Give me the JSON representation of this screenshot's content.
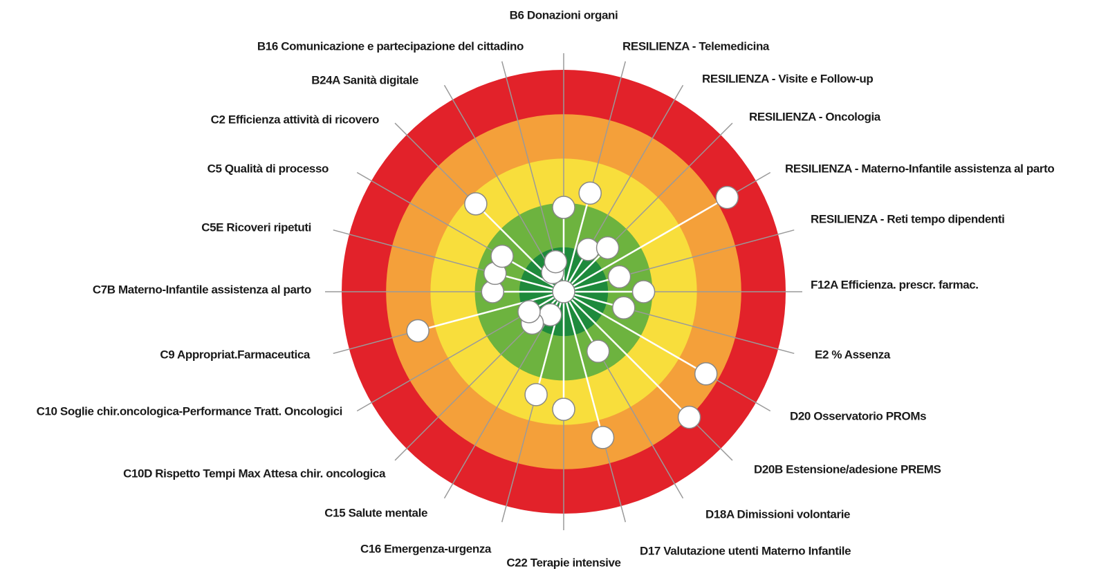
{
  "chart_data": {
    "type": "target",
    "categories": [
      "B6 Donazioni organi",
      "RESILIENZA - Telemedicina",
      "RESILIENZA - Visite e Follow-up",
      "RESILIENZA - Oncologia",
      "RESILIENZA - Materno-Infantile assistenza al parto",
      "RESILIENZA - Reti tempo dipendenti",
      "F12A Efficienza. prescr. farmac.",
      "E2 % Assenza",
      "D20 Osservatorio PROMs",
      "D20B Estensione/adesione PREMS",
      "D18A Dimissioni volontarie",
      "D17 Valutazione utenti Materno Infantile",
      "C22 Terapie intensive",
      "C16 Emergenza-urgenza",
      "C15 Salute mentale",
      "C10D Rispetto Tempi Max Attesa chir. oncologica",
      "C10 Soglie chir.oncologica-Performance Tratt. Oncologici",
      "C9 Appropriat.Farmaceutica",
      "C7B Materno-Infantile assistenza al parto",
      "C5E Ricoveri ripetuti",
      "C5 Qualità  di processo",
      "C2 Efficienza attività di ricovero",
      "B24A Sanità digitale",
      "B16 Comunicazione e partecipazione del cittadino"
    ],
    "values": [
      3.1,
      2.7,
      3.9,
      3.6,
      0.75,
      3.7,
      3.2,
      3.6,
      1.3,
      1.0,
      3.45,
      1.6,
      2.35,
      2.6,
      4.4,
      4.0,
      4.1,
      1.6,
      3.4,
      3.4,
      3.4,
      2.2,
      4.5,
      4.3
    ],
    "rlim": [
      5,
      0
    ],
    "rticks": [
      5,
      4,
      3,
      2,
      1,
      0
    ],
    "band_colors": [
      "#1e8a3c",
      "#6db33f",
      "#f8de3c",
      "#f4a03a",
      "#e2222a"
    ],
    "marker_color": "#ffffff",
    "spoke_color": "#9a9a9a"
  }
}
